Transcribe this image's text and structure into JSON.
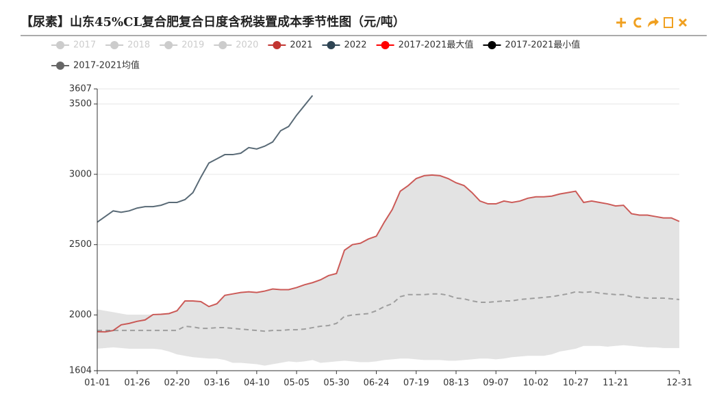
{
  "chart_data": {
    "type": "line",
    "title": "【尿素】山东45%CL复合肥复合日度含税装置成本季节性图（元/吨）",
    "x": [
      "01-01",
      null,
      null,
      null,
      null,
      "01-26",
      null,
      null,
      null,
      null,
      "02-20",
      null,
      null,
      null,
      null,
      "03-16",
      null,
      null,
      null,
      null,
      "04-10",
      null,
      null,
      null,
      null,
      "05-05",
      null,
      null,
      null,
      null,
      "05-30",
      null,
      null,
      null,
      null,
      "06-24",
      null,
      null,
      null,
      null,
      "07-19",
      null,
      null,
      null,
      null,
      "08-13",
      null,
      null,
      null,
      null,
      "09-07",
      null,
      null,
      null,
      null,
      "10-02",
      null,
      null,
      null,
      null,
      "10-27",
      null,
      null,
      null,
      null,
      "11-21",
      null,
      null,
      null,
      null,
      null,
      null,
      null,
      "12-31"
    ],
    "ylim": [
      1604,
      3607
    ],
    "yticks": [
      1604,
      2000,
      2500,
      3000,
      3500,
      3607
    ],
    "grid": true,
    "band_color": "#e3e3e3",
    "series": [
      {
        "name": "2017",
        "color": "#cccccc",
        "hidden": true
      },
      {
        "name": "2018",
        "color": "#cccccc",
        "hidden": true
      },
      {
        "name": "2019",
        "color": "#cccccc",
        "hidden": true
      },
      {
        "name": "2020",
        "color": "#cccccc",
        "hidden": true
      },
      {
        "name": "2021",
        "color": "#c23531",
        "values": [
          1881,
          1880,
          1890,
          1930,
          1940,
          1955,
          1965,
          2003,
          2005,
          2010,
          2030,
          2100,
          2100,
          2095,
          2060,
          2080,
          2140,
          2150,
          2160,
          2165,
          2160,
          2170,
          2185,
          2180,
          2180,
          2195,
          2215,
          2230,
          2250,
          2280,
          2295,
          2460,
          2500,
          2510,
          2540,
          2560,
          2660,
          2750,
          2880,
          2920,
          2970,
          2990,
          2995,
          2990,
          2970,
          2940,
          2920,
          2870,
          2810,
          2790,
          2790,
          2810,
          2800,
          2810,
          2830,
          2840,
          2840,
          2845,
          2860,
          2870,
          2880,
          2800,
          2810,
          2800,
          2790,
          2775,
          2780,
          2720,
          2710,
          2710,
          2700,
          2690,
          2690,
          2665
        ]
      },
      {
        "name": "2022",
        "color": "#2f4554",
        "values": [
          2660,
          2700,
          2740,
          2730,
          2740,
          2760,
          2770,
          2770,
          2780,
          2800,
          2800,
          2820,
          2870,
          2980,
          3080,
          3110,
          3140,
          3140,
          3150,
          3190,
          3180,
          3200,
          3230,
          3310,
          3340,
          3420,
          3490,
          3560,
          null,
          null,
          null,
          null,
          null,
          null,
          null,
          null,
          null,
          null,
          null,
          null,
          null,
          null,
          null,
          null,
          null,
          null,
          null,
          null,
          null,
          null,
          null,
          null,
          null,
          null,
          null,
          null,
          null,
          null,
          null,
          null,
          null,
          null,
          null,
          null,
          null,
          null,
          null,
          null,
          null,
          null,
          null,
          null,
          null,
          null
        ]
      },
      {
        "name": "2017-2021最大值",
        "color": "#ff0000",
        "band": "upper",
        "values": [
          2040,
          2030,
          2020,
          2010,
          2000,
          2000,
          2000,
          2005,
          2010,
          2015,
          2030,
          2100,
          2100,
          2095,
          2060,
          2080,
          2140,
          2150,
          2160,
          2165,
          2160,
          2170,
          2185,
          2180,
          2180,
          2195,
          2215,
          2230,
          2250,
          2280,
          2295,
          2460,
          2500,
          2510,
          2540,
          2560,
          2660,
          2750,
          2880,
          2920,
          2970,
          2990,
          2995,
          2990,
          2970,
          2940,
          2920,
          2870,
          2810,
          2790,
          2790,
          2810,
          2800,
          2810,
          2830,
          2840,
          2840,
          2845,
          2860,
          2870,
          2880,
          2800,
          2810,
          2800,
          2790,
          2775,
          2780,
          2720,
          2710,
          2710,
          2700,
          2690,
          2690,
          2665
        ]
      },
      {
        "name": "2017-2021最小值",
        "color": "#000000",
        "band": "lower",
        "values": [
          1760,
          1765,
          1770,
          1765,
          1760,
          1760,
          1760,
          1760,
          1755,
          1740,
          1720,
          1710,
          1700,
          1695,
          1690,
          1690,
          1680,
          1660,
          1660,
          1655,
          1650,
          1640,
          1650,
          1660,
          1670,
          1665,
          1670,
          1680,
          1660,
          1665,
          1670,
          1675,
          1670,
          1665,
          1665,
          1670,
          1680,
          1685,
          1690,
          1690,
          1685,
          1680,
          1680,
          1680,
          1675,
          1675,
          1680,
          1685,
          1690,
          1690,
          1685,
          1690,
          1700,
          1705,
          1710,
          1710,
          1710,
          1720,
          1740,
          1750,
          1760,
          1780,
          1780,
          1780,
          1775,
          1780,
          1785,
          1780,
          1775,
          1770,
          1770,
          1765,
          1765,
          1765
        ]
      },
      {
        "name": "2017-2021均值",
        "color": "#666666",
        "dashed": true,
        "values": [
          1890,
          1890,
          1890,
          1890,
          1890,
          1890,
          1890,
          1890,
          1890,
          1890,
          1890,
          1920,
          1915,
          1905,
          1905,
          1910,
          1910,
          1905,
          1900,
          1895,
          1890,
          1885,
          1890,
          1890,
          1895,
          1895,
          1900,
          1910,
          1920,
          1925,
          1940,
          1990,
          2000,
          2005,
          2010,
          2030,
          2060,
          2080,
          2130,
          2145,
          2145,
          2145,
          2150,
          2150,
          2140,
          2120,
          2115,
          2100,
          2090,
          2090,
          2095,
          2100,
          2100,
          2110,
          2115,
          2120,
          2125,
          2130,
          2140,
          2150,
          2165,
          2160,
          2165,
          2155,
          2150,
          2145,
          2145,
          2130,
          2125,
          2120,
          2120,
          2120,
          2115,
          2110
        ]
      }
    ]
  }
}
